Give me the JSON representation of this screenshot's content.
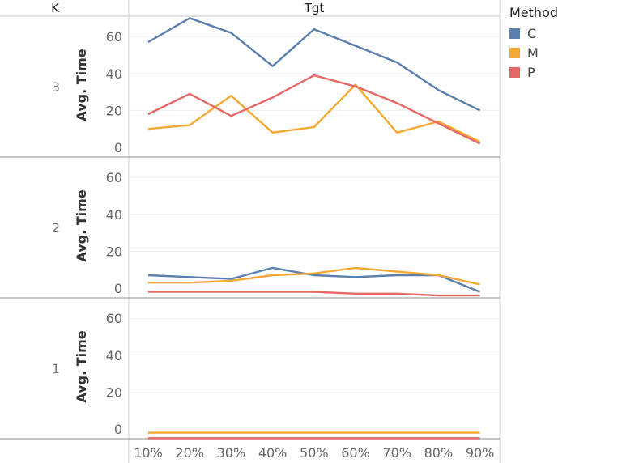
{
  "chart_data": {
    "type": "line",
    "column_header": "Tgt",
    "row_header": "K",
    "ylabel": "Avg. Time",
    "x": [
      "10%",
      "20%",
      "30%",
      "40%",
      "50%",
      "60%",
      "70%",
      "80%",
      "90%"
    ],
    "yticks": [
      0,
      20,
      40,
      60
    ],
    "ylim": [
      -5,
      73
    ],
    "legend": {
      "title": "Method",
      "position": "top-right"
    },
    "series_meta": [
      {
        "name": "C",
        "color": "#5b7fae"
      },
      {
        "name": "M",
        "color": "#f5a833"
      },
      {
        "name": "P",
        "color": "#e66865"
      }
    ],
    "panels": [
      {
        "k": "3",
        "series": [
          {
            "name": "C",
            "values": [
              57,
              70,
              62,
              44,
              64,
              55,
              46,
              31,
              20
            ]
          },
          {
            "name": "M",
            "values": [
              10,
              12,
              28,
              8,
              11,
              34,
              8,
              14,
              3
            ]
          },
          {
            "name": "P",
            "values": [
              18,
              29,
              17,
              27,
              39,
              33,
              24,
              13,
              2
            ]
          }
        ]
      },
      {
        "k": "2",
        "series": [
          {
            "name": "C",
            "values": [
              7,
              6,
              5,
              11,
              7,
              6,
              7,
              7,
              -2
            ]
          },
          {
            "name": "M",
            "values": [
              3,
              3,
              4,
              7,
              8,
              11,
              9,
              7,
              2
            ]
          },
          {
            "name": "P",
            "values": [
              -2,
              -2,
              -2,
              -2,
              -2,
              -3,
              -3,
              -4,
              -4
            ]
          }
        ]
      },
      {
        "k": "1",
        "series": [
          {
            "name": "C",
            "values": [
              -5,
              -5,
              -5,
              -5,
              -5,
              -5,
              -5,
              -5,
              -5
            ]
          },
          {
            "name": "M",
            "values": [
              -2,
              -2,
              -2,
              -2,
              -2,
              -2,
              -2,
              -2,
              -2
            ]
          },
          {
            "name": "P",
            "values": [
              -5,
              -5,
              -5,
              -5,
              -5,
              -5,
              -5,
              -5,
              -5
            ]
          }
        ]
      }
    ]
  }
}
